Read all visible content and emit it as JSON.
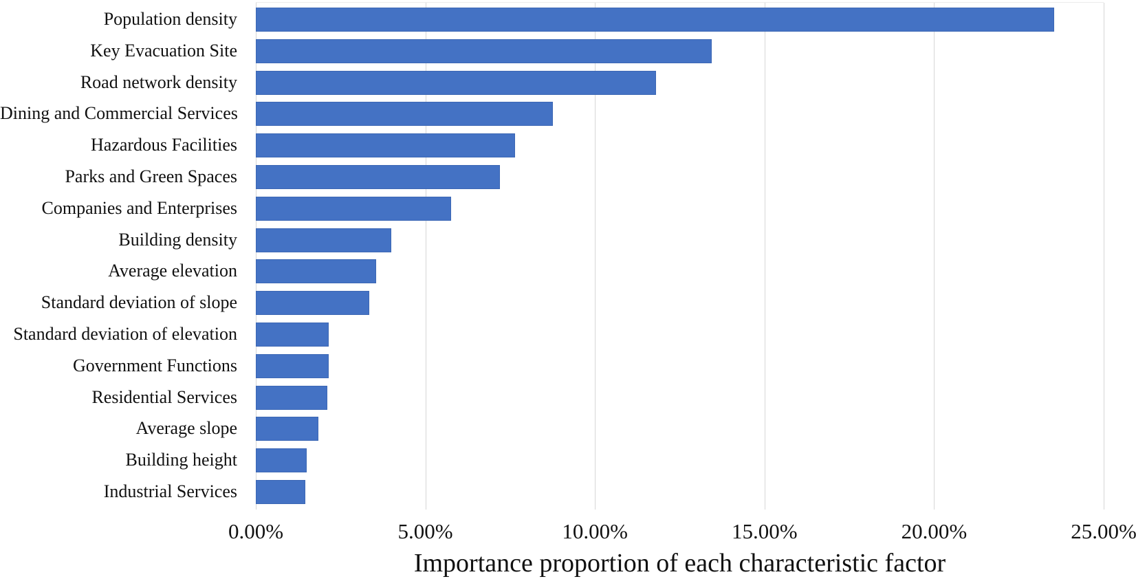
{
  "chart_data": {
    "type": "bar",
    "orientation": "horizontal",
    "title": "",
    "xlabel": "Importance proportion of each characteristic factor",
    "ylabel": "",
    "categories": [
      "Population density",
      "Key Evacuation Site",
      "Road network density",
      "Dining and Commercial Services",
      "Hazardous Facilities",
      "Parks and Green Spaces",
      "Companies and Enterprises",
      "Building density",
      "Average elevation",
      "Standard deviation of slope",
      "Standard deviation of elevation",
      "Government Functions",
      "Residential Services",
      "Average slope",
      "Building height",
      "Industrial Services"
    ],
    "values": [
      23.55,
      13.45,
      11.8,
      8.75,
      7.65,
      7.2,
      5.75,
      4.0,
      3.55,
      3.35,
      2.15,
      2.15,
      2.1,
      1.85,
      1.5,
      1.45
    ],
    "value_unit": "%",
    "xlim": [
      0,
      25
    ],
    "x_tick_labels": [
      "0.00%",
      "5.00%",
      "10.00%",
      "15.00%",
      "20.00%",
      "25.00%"
    ],
    "x_tick_values": [
      0,
      5,
      10,
      15,
      20,
      25
    ],
    "grid": "vertical-only",
    "legend": "none",
    "bar_color": "#4472C4",
    "gridline_color": "#D6D6D6"
  }
}
